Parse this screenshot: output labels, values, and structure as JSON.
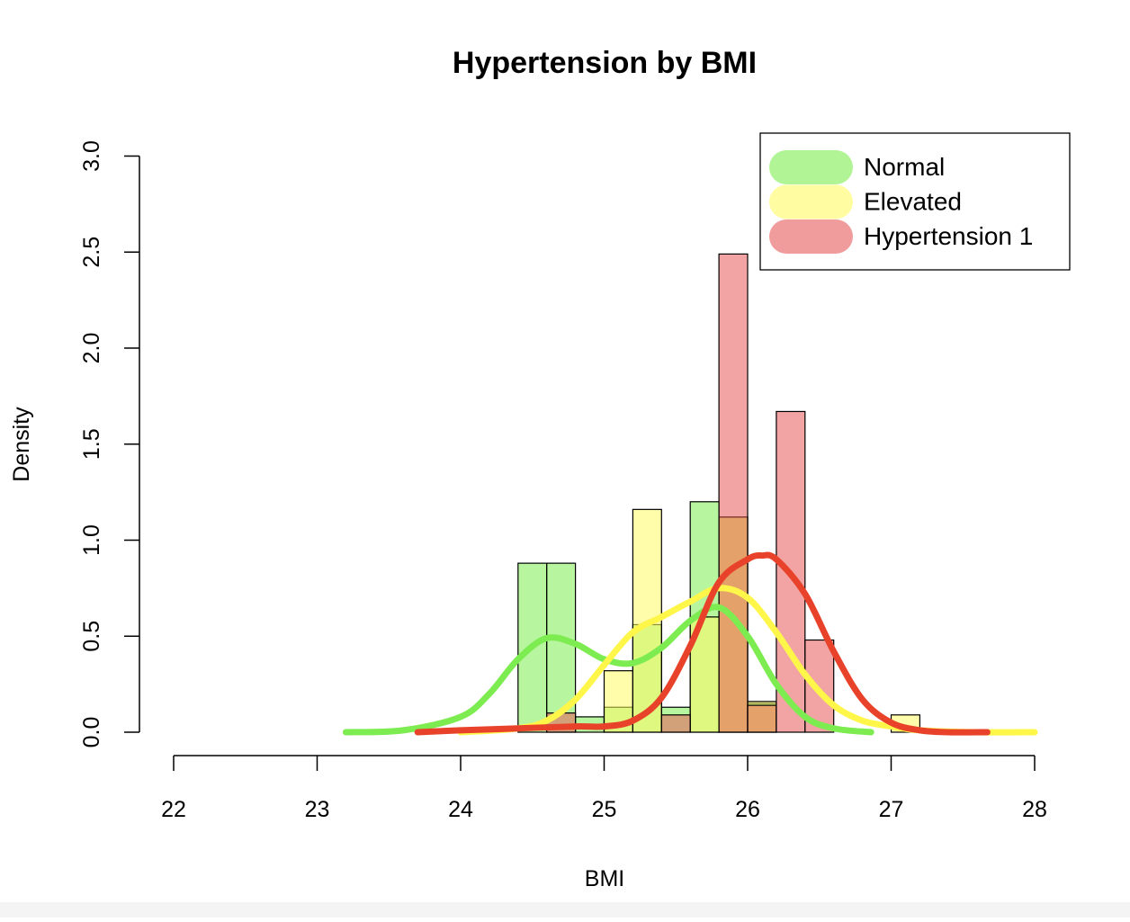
{
  "chart_data": {
    "type": "histogram",
    "title": "Hypertension by BMI",
    "xlabel": "BMI",
    "ylabel": "Density",
    "xlim": [
      22,
      28
    ],
    "ylim": [
      0,
      3.0
    ],
    "x_ticks": [
      "22",
      "23",
      "24",
      "25",
      "26",
      "27",
      "28"
    ],
    "y_ticks": [
      "0.0",
      "0.5",
      "1.0",
      "1.5",
      "2.0",
      "2.5",
      "3.0"
    ],
    "bin_width": 0.2,
    "legend_position": "top-right",
    "series": [
      {
        "name": "Normal",
        "color": "#7dec50",
        "fill": "rgba(125,236,80,0.55)",
        "bins": [
          {
            "x0": 24.4,
            "value": 0.88
          },
          {
            "x0": 24.6,
            "value": 0.88
          },
          {
            "x0": 24.8,
            "value": 0.08
          },
          {
            "x0": 25.0,
            "value": 0.13
          },
          {
            "x0": 25.2,
            "value": 0.56
          },
          {
            "x0": 25.4,
            "value": 0.13
          },
          {
            "x0": 25.6,
            "value": 1.2
          },
          {
            "x0": 25.8,
            "value": 1.12
          },
          {
            "x0": 26.0,
            "value": 0.15
          }
        ],
        "density": {
          "x": [
            23.2,
            23.6,
            24.0,
            24.2,
            24.4,
            24.6,
            24.8,
            25.0,
            25.2,
            25.4,
            25.6,
            25.8,
            26.0,
            26.2,
            26.4,
            26.6,
            26.86
          ],
          "y": [
            0.0,
            0.01,
            0.08,
            0.2,
            0.38,
            0.49,
            0.46,
            0.38,
            0.36,
            0.44,
            0.58,
            0.65,
            0.5,
            0.25,
            0.08,
            0.02,
            0.0
          ]
        }
      },
      {
        "name": "Elevated",
        "color": "#fff64a",
        "fill": "rgba(255,250,100,0.55)",
        "bins": [
          {
            "x0": 25.0,
            "value": 0.32
          },
          {
            "x0": 25.2,
            "value": 1.16
          },
          {
            "x0": 25.6,
            "value": 0.6
          },
          {
            "x0": 25.8,
            "value": 1.12
          },
          {
            "x0": 26.0,
            "value": 0.16
          },
          {
            "x0": 27.0,
            "value": 0.09
          }
        ],
        "density": {
          "x": [
            24.0,
            24.4,
            24.6,
            24.8,
            25.0,
            25.2,
            25.4,
            25.6,
            25.8,
            26.0,
            26.2,
            26.4,
            26.6,
            26.8,
            27.0,
            27.2,
            27.6,
            28.0
          ],
          "y": [
            0.0,
            0.02,
            0.06,
            0.17,
            0.35,
            0.52,
            0.6,
            0.68,
            0.75,
            0.7,
            0.52,
            0.3,
            0.14,
            0.06,
            0.03,
            0.01,
            0.0,
            0.0
          ]
        }
      },
      {
        "name": "Hypertension 1",
        "color": "#e8432a",
        "fill": "rgba(232,90,90,0.55)",
        "bins": [
          {
            "x0": 24.0,
            "value": 0.02
          },
          {
            "x0": 24.6,
            "value": 0.1
          },
          {
            "x0": 25.4,
            "value": 0.09
          },
          {
            "x0": 25.8,
            "value": 2.49
          },
          {
            "x0": 26.0,
            "value": 0.14
          },
          {
            "x0": 26.2,
            "value": 1.67
          },
          {
            "x0": 26.4,
            "value": 0.48
          }
        ],
        "density": {
          "x": [
            23.7,
            24.0,
            24.4,
            24.8,
            25.0,
            25.2,
            25.4,
            25.6,
            25.8,
            26.0,
            26.1,
            26.2,
            26.4,
            26.6,
            26.8,
            27.0,
            27.2,
            27.4,
            27.67
          ],
          "y": [
            0.0,
            0.01,
            0.02,
            0.03,
            0.03,
            0.06,
            0.18,
            0.45,
            0.78,
            0.9,
            0.92,
            0.9,
            0.72,
            0.42,
            0.17,
            0.05,
            0.01,
            0.0,
            0.0
          ]
        }
      }
    ]
  }
}
